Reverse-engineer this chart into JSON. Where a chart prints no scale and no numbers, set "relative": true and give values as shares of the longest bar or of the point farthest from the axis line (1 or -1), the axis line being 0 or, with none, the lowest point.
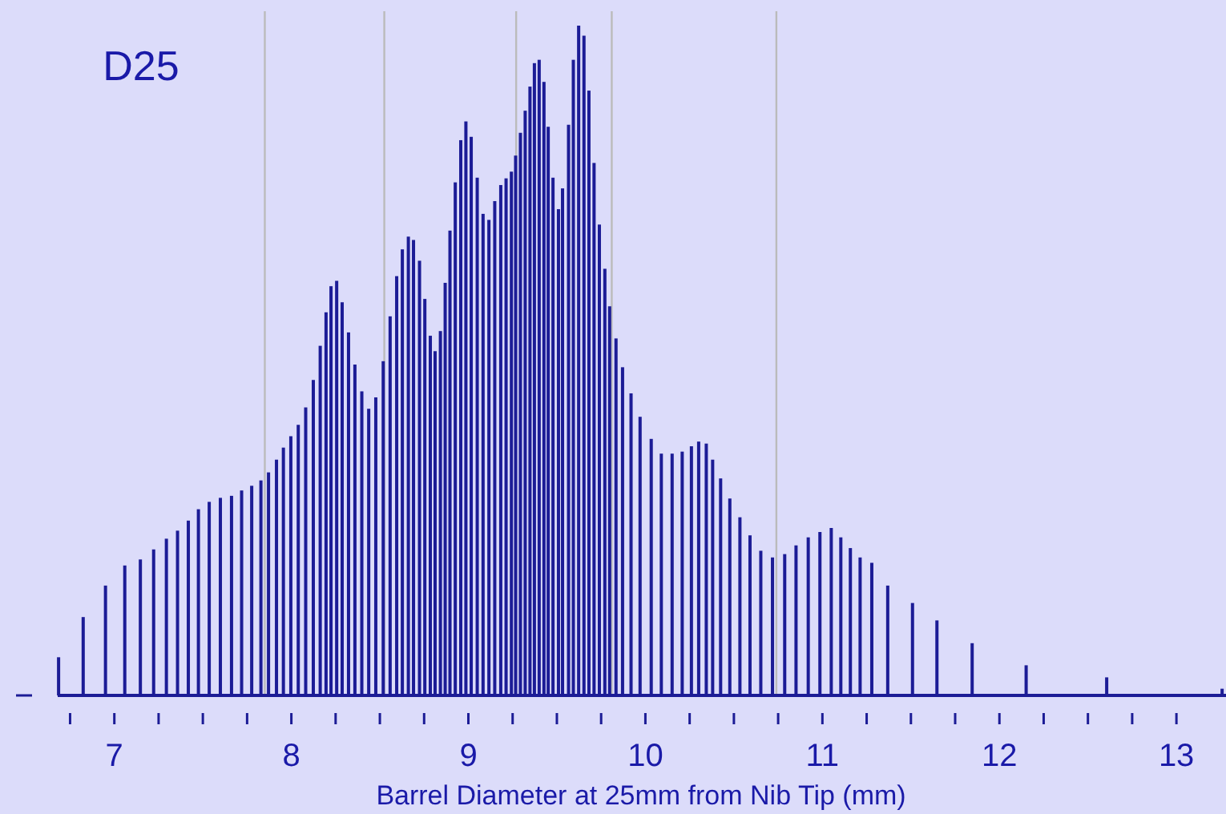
{
  "chart_data": {
    "type": "bar",
    "title": "D25",
    "xlabel": "Barrel Diameter at 25mm from Nib Tip (mm)",
    "relative": true,
    "color": "#1c1c96",
    "x": [
      6.685,
      6.824,
      6.95,
      7.059,
      7.147,
      7.222,
      7.294,
      7.357,
      7.418,
      7.475,
      7.536,
      7.599,
      7.662,
      7.719,
      7.776,
      7.828,
      7.871,
      7.916,
      7.955,
      7.997,
      8.039,
      8.081,
      8.124,
      8.163,
      8.196,
      8.224,
      8.256,
      8.287,
      8.323,
      8.359,
      8.398,
      8.437,
      8.477,
      8.519,
      8.558,
      8.595,
      8.627,
      8.661,
      8.69,
      8.724,
      8.754,
      8.785,
      8.812,
      8.842,
      8.869,
      8.896,
      8.926,
      8.957,
      8.986,
      9.016,
      9.05,
      9.083,
      9.116,
      9.149,
      9.183,
      9.213,
      9.243,
      9.267,
      9.294,
      9.321,
      9.348,
      9.373,
      9.4,
      9.427,
      9.451,
      9.478,
      9.509,
      9.532,
      9.566,
      9.593,
      9.623,
      9.653,
      9.681,
      9.71,
      9.74,
      9.771,
      9.798,
      9.834,
      9.871,
      9.919,
      9.97,
      10.033,
      10.09,
      10.151,
      10.208,
      10.26,
      10.301,
      10.344,
      10.38,
      10.425,
      10.477,
      10.534,
      10.591,
      10.652,
      10.718,
      10.787,
      10.851,
      10.92,
      10.986,
      11.05,
      11.104,
      11.158,
      11.213,
      11.279,
      11.369,
      11.509,
      11.647,
      11.846,
      12.151,
      12.606,
      13.258
    ],
    "values": [
      0.057,
      0.117,
      0.164,
      0.194,
      0.203,
      0.218,
      0.234,
      0.246,
      0.261,
      0.278,
      0.289,
      0.295,
      0.298,
      0.306,
      0.313,
      0.321,
      0.333,
      0.352,
      0.37,
      0.387,
      0.404,
      0.43,
      0.471,
      0.522,
      0.572,
      0.611,
      0.619,
      0.587,
      0.542,
      0.494,
      0.454,
      0.428,
      0.445,
      0.499,
      0.566,
      0.626,
      0.666,
      0.685,
      0.68,
      0.649,
      0.592,
      0.537,
      0.514,
      0.544,
      0.616,
      0.694,
      0.766,
      0.829,
      0.857,
      0.834,
      0.773,
      0.719,
      0.71,
      0.738,
      0.762,
      0.772,
      0.782,
      0.806,
      0.84,
      0.873,
      0.909,
      0.944,
      0.949,
      0.916,
      0.849,
      0.773,
      0.726,
      0.757,
      0.852,
      0.949,
      1,
      0.985,
      0.903,
      0.795,
      0.703,
      0.637,
      0.581,
      0.533,
      0.49,
      0.451,
      0.416,
      0.383,
      0.361,
      0.361,
      0.364,
      0.372,
      0.379,
      0.376,
      0.352,
      0.324,
      0.294,
      0.266,
      0.239,
      0.216,
      0.206,
      0.211,
      0.224,
      0.236,
      0.244,
      0.25,
      0.236,
      0.22,
      0.206,
      0.198,
      0.164,
      0.138,
      0.112,
      0.078,
      0.045,
      0.027,
      0.01
    ],
    "xlim": [
      6.68,
      13.28
    ],
    "xticks": [
      {
        "value": 6.75,
        "label": null
      },
      7,
      {
        "value": 7.25,
        "label": null
      },
      {
        "value": 7.5,
        "label": null
      },
      {
        "value": 7.75,
        "label": null
      },
      8,
      {
        "value": 8.25,
        "label": null
      },
      {
        "value": 8.5,
        "label": null
      },
      {
        "value": 8.75,
        "label": null
      },
      9,
      {
        "value": 9.25,
        "label": null
      },
      {
        "value": 9.5,
        "label": null
      },
      {
        "value": 9.75,
        "label": null
      },
      10,
      {
        "value": 10.25,
        "label": null
      },
      {
        "value": 10.5,
        "label": null
      },
      {
        "value": 10.75,
        "label": null
      },
      11,
      {
        "value": 11.25,
        "label": null
      },
      {
        "value": 11.5,
        "label": null
      },
      {
        "value": 11.75,
        "label": null
      },
      12,
      {
        "value": 12.25,
        "label": null
      },
      {
        "value": 12.5,
        "label": null
      },
      {
        "value": 12.75,
        "label": null
      },
      13
    ],
    "ref_lines": [
      {
        "axis": "x",
        "value": 7.85,
        "color": "#bbbbbb"
      },
      {
        "axis": "x",
        "value": 8.525,
        "color": "#bbbbbb"
      },
      {
        "axis": "x",
        "value": 9.27,
        "color": "#bbbbbb"
      },
      {
        "axis": "x",
        "value": 9.81,
        "color": "#bbbbbb"
      },
      {
        "axis": "x",
        "value": 10.74,
        "color": "#bbbbbb"
      }
    ]
  }
}
